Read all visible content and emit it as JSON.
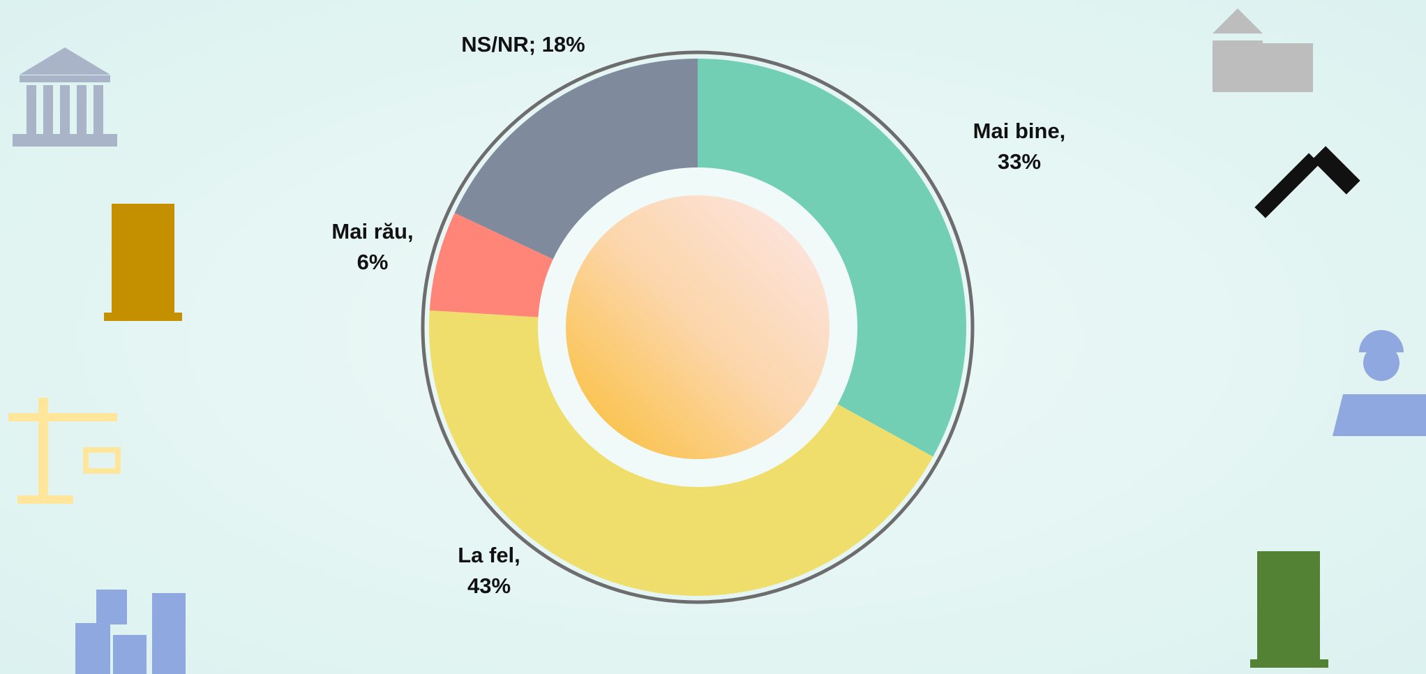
{
  "chart_data": {
    "type": "donut",
    "categories": [
      "Mai bine",
      "La fel",
      "Mai rău",
      "NS/NR"
    ],
    "values": [
      33,
      43,
      6,
      18
    ],
    "value_labels": [
      "Mai bine, 33%",
      "La fel, 43%",
      "Mai rău, 6%",
      "NS/NR; 18%"
    ],
    "colors": [
      "#72cfb4",
      "#f0de6c",
      "#fe8577",
      "#7f8b9d"
    ]
  }
}
